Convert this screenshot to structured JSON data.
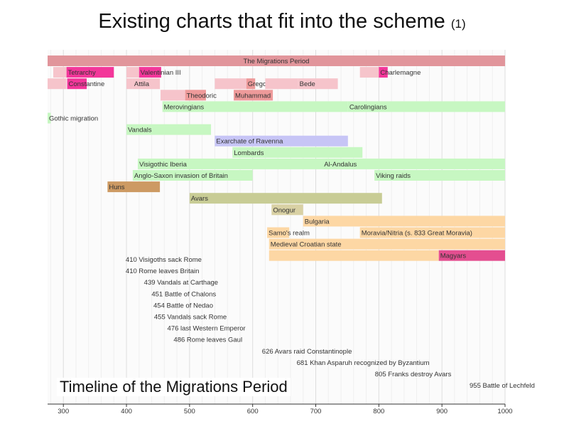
{
  "slide": {
    "title_main": "Existing charts that fit into the scheme",
    "title_suffix": "(1)",
    "caption": "Timeline of the Migrations Period"
  },
  "chart_data": {
    "type": "timeline",
    "xlim": [
      275,
      1000
    ],
    "x_ticks": [
      300,
      400,
      500,
      600,
      700,
      800,
      900,
      1000
    ],
    "grid": true,
    "colors": {
      "period": "#e1959b",
      "pink": "#f3369a",
      "lightpink": "#f6c4cb",
      "salmon": "#ee9a9a",
      "lightgreen": "#c7f7c2",
      "lavender": "#c7c5f6",
      "brown": "#cd9a63",
      "olive": "#c8cc95",
      "khaki": "#d9d1a4",
      "peach": "#fdd7a4",
      "magenta": "#e44e90",
      "link": "#1f22d3",
      "text": "#333333"
    },
    "bars": [
      {
        "row": 0,
        "start": 275,
        "end": 1000,
        "color": "period",
        "label": "The Migrations Period",
        "label_align": "center"
      },
      {
        "row": 1,
        "start": 284,
        "end": 305,
        "color": "lightpink",
        "label": ""
      },
      {
        "row": 1,
        "start": 305,
        "end": 380,
        "color": "pink",
        "label": "Tetrarchy"
      },
      {
        "row": 1,
        "start": 400,
        "end": 420,
        "color": "lightpink",
        "label": ""
      },
      {
        "row": 1,
        "start": 420,
        "end": 455,
        "color": "pink",
        "label": "Valentinian III"
      },
      {
        "row": 1,
        "start": 770,
        "end": 800,
        "color": "lightpink",
        "label": ""
      },
      {
        "row": 1,
        "start": 800,
        "end": 814,
        "color": "pink",
        "label": "Charlemagne"
      },
      {
        "row": 2,
        "start": 275,
        "end": 305,
        "color": "lightpink",
        "label": ""
      },
      {
        "row": 2,
        "start": 306,
        "end": 337,
        "color": "pink",
        "label": "Constantine"
      },
      {
        "row": 2,
        "start": 400,
        "end": 410,
        "color": "lightpink",
        "label": ""
      },
      {
        "row": 2,
        "start": 410,
        "end": 453,
        "color": "lightpink",
        "label": "Attila"
      },
      {
        "row": 2,
        "start": 540,
        "end": 590,
        "color": "lightpink",
        "label": ""
      },
      {
        "row": 2,
        "start": 590,
        "end": 604,
        "color": "salmon",
        "label": "Gregory I"
      },
      {
        "row": 2,
        "start": 620,
        "end": 672,
        "color": "lightpink",
        "label": ""
      },
      {
        "row": 2,
        "start": 672,
        "end": 735,
        "color": "lightpink",
        "label": "Bede"
      },
      {
        "row": 3,
        "start": 454,
        "end": 493,
        "color": "lightpink",
        "label": ""
      },
      {
        "row": 3,
        "start": 493,
        "end": 526,
        "color": "salmon",
        "label": "Theodoric"
      },
      {
        "row": 3,
        "start": 570,
        "end": 632,
        "color": "salmon",
        "label": "Muhammad"
      },
      {
        "row": 4,
        "start": 457,
        "end": 751,
        "color": "lightgreen",
        "label": "Merovingians"
      },
      {
        "row": 4,
        "start": 751,
        "end": 1000,
        "color": "lightgreen",
        "label": "Carolingians"
      },
      {
        "row": 5,
        "start": 275,
        "end": 280,
        "color": "lightgreen",
        "label": "Gothic migration"
      },
      {
        "row": 6,
        "start": 400,
        "end": 534,
        "color": "lightgreen",
        "label": "Vandals"
      },
      {
        "row": 7,
        "start": 540,
        "end": 751,
        "color": "lavender",
        "label": "Exarchate of Ravenna"
      },
      {
        "row": 8,
        "start": 568,
        "end": 774,
        "color": "lightgreen",
        "label": "Lombards"
      },
      {
        "row": 9,
        "start": 418,
        "end": 721,
        "color": "lightgreen",
        "label": "Visigothic Iberia"
      },
      {
        "row": 9,
        "start": 711,
        "end": 1000,
        "color": "lightgreen",
        "label": "Al-Andalus"
      },
      {
        "row": 10,
        "start": 410,
        "end": 600,
        "color": "lightgreen",
        "label": "Anglo-Saxon invasion of Britain"
      },
      {
        "row": 10,
        "start": 793,
        "end": 1000,
        "color": "lightgreen",
        "label": "Viking raids"
      },
      {
        "row": 11,
        "start": 370,
        "end": 453,
        "color": "brown",
        "label": "Huns"
      },
      {
        "row": 12,
        "start": 500,
        "end": 805,
        "color": "olive",
        "label": "Avars"
      },
      {
        "row": 13,
        "start": 630,
        "end": 680,
        "color": "khaki",
        "label": "Onogur"
      },
      {
        "row": 14,
        "start": 680,
        "end": 1000,
        "color": "peach",
        "label": "Bulgaria"
      },
      {
        "row": 15,
        "start": 623,
        "end": 658,
        "color": "peach",
        "label": "Samo's realm"
      },
      {
        "row": 15,
        "start": 770,
        "end": 1000,
        "color": "peach",
        "label": "Moravia/Nitria (s. 833 Great Moravia)"
      },
      {
        "row": 16,
        "start": 626,
        "end": 1000,
        "color": "peach",
        "label": "Medieval Croatian state"
      },
      {
        "row": 17,
        "start": 626,
        "end": 895,
        "color": "peach",
        "label": ""
      },
      {
        "row": 17,
        "start": 895,
        "end": 1000,
        "color": "magenta",
        "label": "Magyars"
      }
    ],
    "events": [
      {
        "year": 410,
        "label": "410 Visigoths sack Rome"
      },
      {
        "year": 410,
        "label": "410 Rome leaves Britain"
      },
      {
        "year": 439,
        "label": "439 Vandals at Carthage"
      },
      {
        "year": 451,
        "label": "451 Battle of Chalons"
      },
      {
        "year": 454,
        "label": "454 Battle of Nedao"
      },
      {
        "year": 455,
        "label": "455 Vandals sack Rome"
      },
      {
        "year": 476,
        "label": "476 last Western Emperor"
      },
      {
        "year": 486,
        "label": "486 Rome leaves Gaul"
      },
      {
        "year": 626,
        "label": "626 Avars raid Constantinople"
      },
      {
        "year": 681,
        "label": "681 Khan Asparuh recognized by Byzantium"
      },
      {
        "year": 805,
        "label": "805 Franks destroy Avars"
      },
      {
        "year": 955,
        "label": "955 Battle of Lechfeld"
      }
    ]
  }
}
